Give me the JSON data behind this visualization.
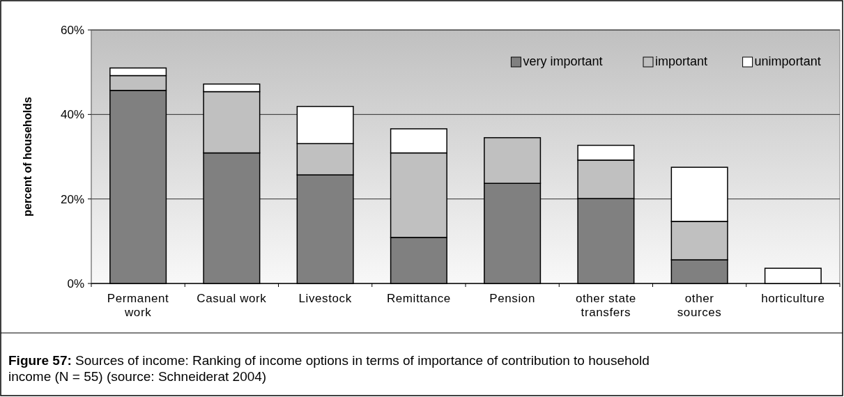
{
  "chart_data": {
    "type": "bar",
    "stacked": true,
    "ylabel": "percent of households",
    "categories": [
      "Permanent work",
      "Casual work",
      "Livestock",
      "Remittance",
      "Pension",
      "other state transfers",
      "other sources",
      "horticulture"
    ],
    "series": [
      {
        "name": "very important",
        "color": "#808080",
        "values": [
          45.7,
          30.9,
          25.7,
          10.9,
          23.7,
          20.1,
          5.6,
          0
        ]
      },
      {
        "name": "important",
        "color": "#c0c0c0",
        "values": [
          3.5,
          14.5,
          7.4,
          20.0,
          10.8,
          9.1,
          9.1,
          0
        ]
      },
      {
        "name": "unimportant",
        "color": "#ffffff",
        "values": [
          1.8,
          1.8,
          8.8,
          5.7,
          0,
          3.5,
          12.8,
          3.6
        ]
      }
    ],
    "ylim": [
      0,
      60
    ],
    "yticks": [
      {
        "value": 0,
        "label": "0%"
      },
      {
        "value": 20,
        "label": "20%"
      },
      {
        "value": 40,
        "label": "40%"
      },
      {
        "value": 60,
        "label": "60%"
      }
    ],
    "grid": "y",
    "legend": "top right",
    "annotations": [
      "Figure 57: Sources of income: Ranking of income options in terms of importance of contribution to household income (N = 55) (source: Schneiderat 2004)"
    ]
  }
}
